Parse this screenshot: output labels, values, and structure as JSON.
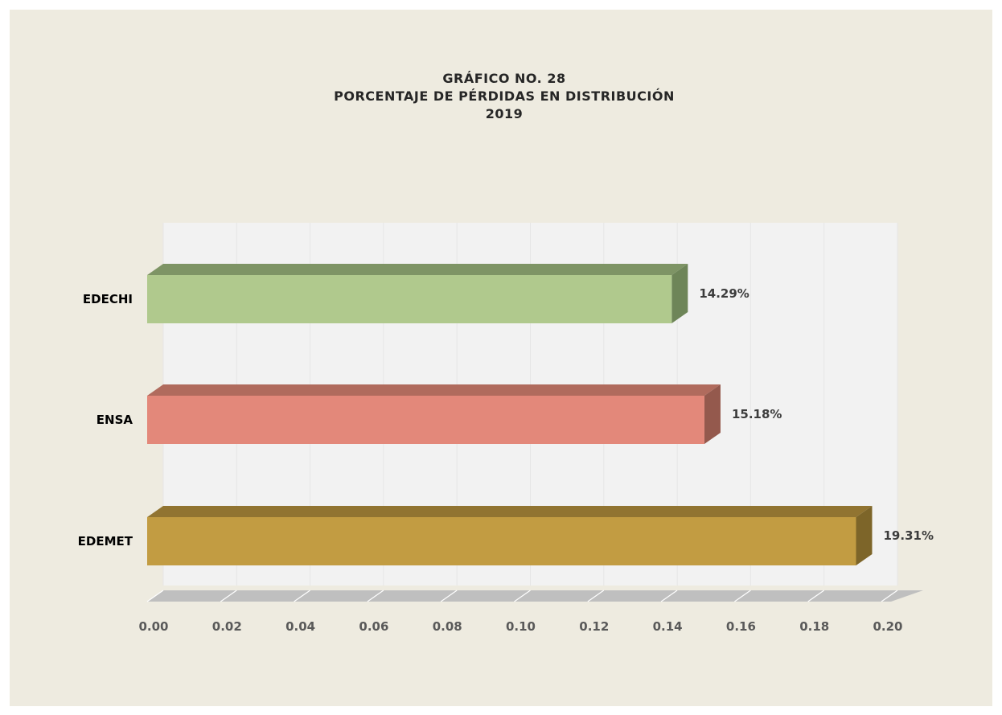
{
  "chart_data": {
    "type": "bar",
    "orientation": "horizontal",
    "title_lines": [
      "GRÁFICO NO. 28",
      "PORCENTAJE DE PÉRDIDAS EN DISTRIBUCIÓN",
      "2019"
    ],
    "categories": [
      "EDECHI",
      "ENSA",
      "EDEMET"
    ],
    "values": [
      0.1429,
      0.1518,
      0.1931
    ],
    "data_labels": [
      "14.29%",
      "15.18%",
      "19.31%"
    ],
    "xlim": [
      0,
      0.2
    ],
    "x_ticks": [
      "0.00",
      "0.02",
      "0.04",
      "0.06",
      "0.08",
      "0.10",
      "0.12",
      "0.14",
      "0.16",
      "0.18",
      "0.20"
    ],
    "legend": "none",
    "grid": "vertical",
    "colors": {
      "EDECHI": {
        "front": "#b0c98d",
        "top": "#7e9465",
        "side": "#6e8558"
      },
      "ENSA": {
        "front": "#e3887a",
        "top": "#b06b5d",
        "side": "#94594d"
      },
      "EDEMET": {
        "front": "#c29c42",
        "top": "#917431",
        "side": "#7d6529"
      },
      "background": "#eeebe0",
      "wall": "#f2f2f2",
      "floor": "#bfbfbf"
    }
  }
}
